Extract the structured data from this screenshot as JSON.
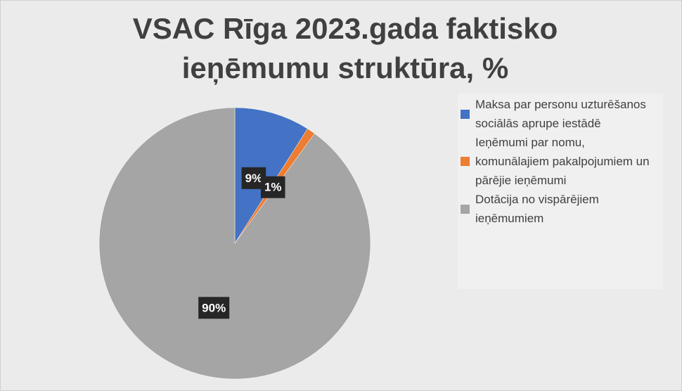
{
  "chart_data": {
    "type": "pie",
    "title": "VSAC Rīga 2023.gada faktisko ieņēmumu struktūra, %",
    "categories": [
      "Maksa par personu uzturēšanos sociālās aprupe iestādē",
      "Ieņēmumi par nomu, komunālajiem pakalpojumiem un pārējie ieņēmumi",
      "Dotācija no vispārējiem ieņēmumiem"
    ],
    "values": [
      9,
      1,
      90
    ],
    "value_labels": [
      "9%",
      "1%",
      "90%"
    ],
    "colors": [
      "#4472c4",
      "#ed7d31",
      "#a5a5a5"
    ],
    "legend": "right"
  }
}
